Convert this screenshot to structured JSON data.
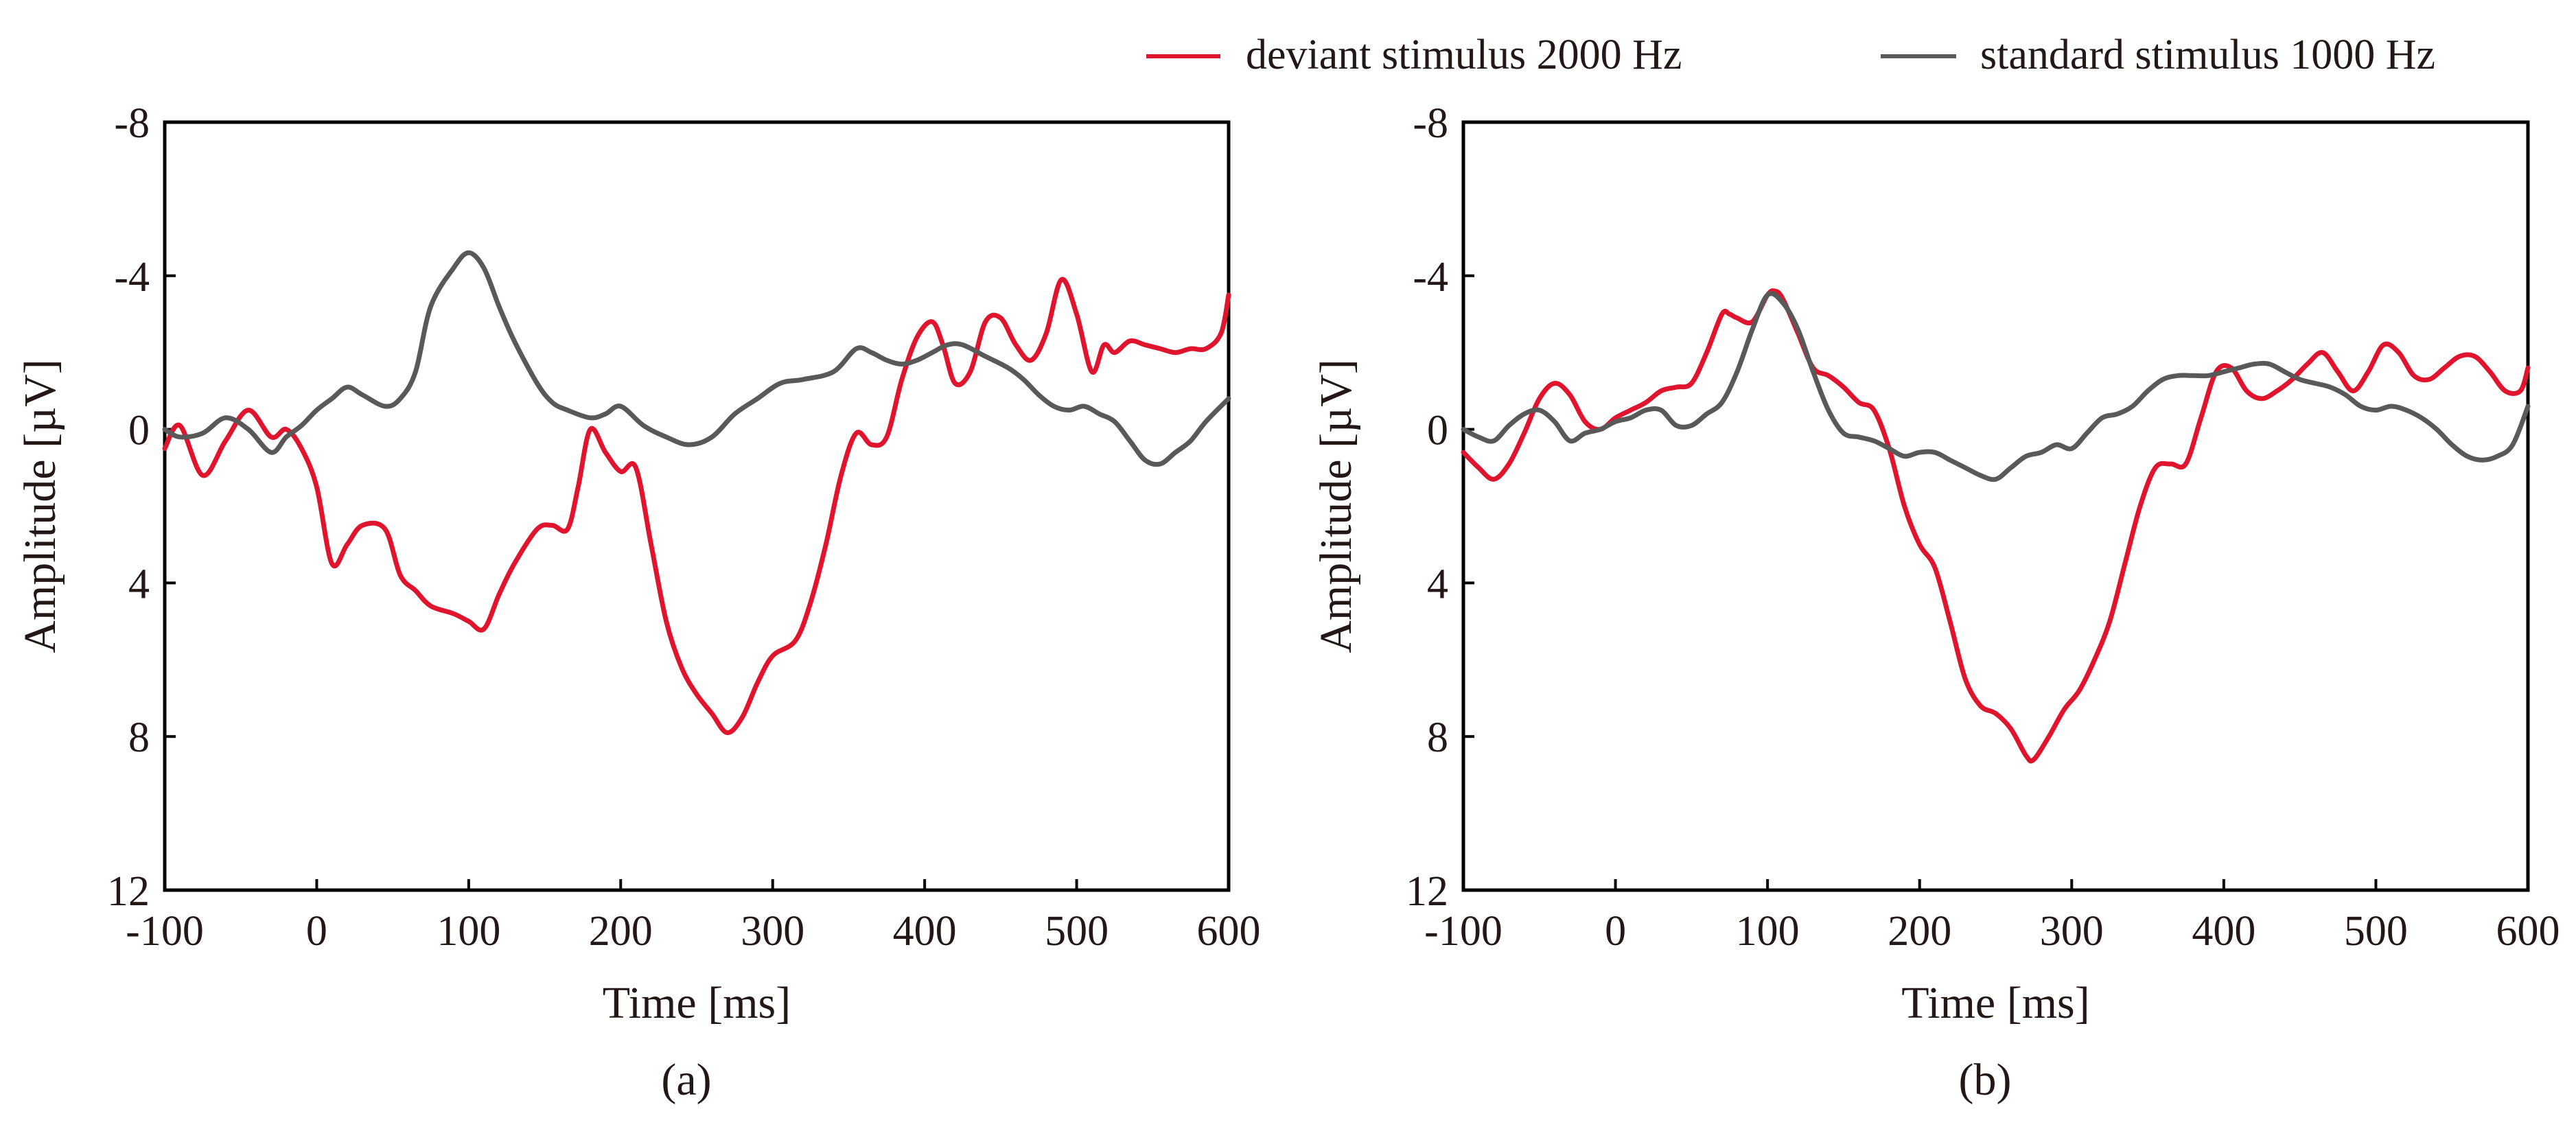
{
  "legend": {
    "items": [
      {
        "label": "deviant stimulus 2000 Hz",
        "color": "#e0142d"
      },
      {
        "label": "standard stimulus 1000 Hz",
        "color": "#595959"
      }
    ]
  },
  "chart_data": [
    {
      "type": "line",
      "caption": "(a)",
      "xlabel": "Time [ms]",
      "ylabel": "Amplitude [µV]",
      "xlim": [
        -100,
        600
      ],
      "ylim": [
        -8,
        12
      ],
      "y_inverted": true,
      "xticks": [
        -100,
        0,
        100,
        200,
        300,
        400,
        500,
        600
      ],
      "yticks": [
        -8,
        -4,
        0,
        4,
        8,
        12
      ],
      "ytick_labels": [
        "-8",
        "-4",
        "0",
        "4",
        "8",
        "12"
      ],
      "grid": false,
      "series": [
        {
          "name": "deviant stimulus 2000 Hz",
          "color": "#e0142d",
          "x": [
            -100,
            -90,
            -75,
            -60,
            -45,
            -30,
            -20,
            -10,
            0,
            10,
            20,
            30,
            45,
            55,
            65,
            75,
            90,
            100,
            110,
            120,
            130,
            145,
            155,
            165,
            172,
            180,
            190,
            200,
            210,
            220,
            230,
            240,
            250,
            260,
            270,
            280,
            290,
            300,
            315,
            325,
            335,
            345,
            355,
            365,
            375,
            385,
            395,
            405,
            412,
            420,
            430,
            440,
            450,
            460,
            470,
            480,
            490,
            500,
            510,
            518,
            525,
            535,
            545,
            555,
            565,
            575,
            585,
            595,
            600
          ],
          "y": [
            0.5,
            -0.1,
            1.2,
            0.3,
            -0.5,
            0.2,
            0,
            0.5,
            1.5,
            3.5,
            3.0,
            2.5,
            2.6,
            3.8,
            4.2,
            4.6,
            4.8,
            5.0,
            5.2,
            4.3,
            3.5,
            2.6,
            2.5,
            2.6,
            1.5,
            0,
            0.6,
            1.1,
            1.0,
            3,
            5,
            6.2,
            6.9,
            7.4,
            7.9,
            7.5,
            6.6,
            5.9,
            5.5,
            4.5,
            3.0,
            1.2,
            0.1,
            0.4,
            0.2,
            -1.3,
            -2.4,
            -2.8,
            -2.2,
            -1.2,
            -1.5,
            -2.8,
            -2.9,
            -2.2,
            -1.8,
            -2.5,
            -3.9,
            -3.0,
            -1.5,
            -2.2,
            -2.0,
            -2.3,
            -2.2,
            -2.1,
            -2.0,
            -2.1,
            -2.1,
            -2.5,
            -3.5
          ]
        },
        {
          "name": "standard stimulus 1000 Hz",
          "color": "#595959",
          "x": [
            -100,
            -90,
            -75,
            -60,
            -45,
            -30,
            -20,
            -10,
            0,
            10,
            20,
            30,
            45,
            55,
            65,
            75,
            90,
            100,
            110,
            120,
            130,
            145,
            155,
            165,
            180,
            190,
            200,
            215,
            230,
            245,
            260,
            275,
            290,
            305,
            320,
            340,
            355,
            365,
            375,
            385,
            395,
            405,
            415,
            425,
            440,
            455,
            465,
            475,
            485,
            495,
            505,
            515,
            525,
            535,
            545,
            555,
            565,
            575,
            585,
            600
          ],
          "y": [
            0,
            0.2,
            0.1,
            -0.3,
            0,
            0.6,
            0.2,
            -0.1,
            -0.5,
            -0.8,
            -1.1,
            -0.9,
            -0.6,
            -0.8,
            -1.5,
            -3.2,
            -4.2,
            -4.6,
            -4.2,
            -3.2,
            -2.3,
            -1.2,
            -0.7,
            -0.5,
            -0.3,
            -0.4,
            -0.6,
            -0.1,
            0.2,
            0.4,
            0.2,
            -0.4,
            -0.8,
            -1.2,
            -1.3,
            -1.5,
            -2.1,
            -2.0,
            -1.8,
            -1.7,
            -1.8,
            -2.0,
            -2.2,
            -2.2,
            -1.9,
            -1.6,
            -1.3,
            -0.9,
            -0.6,
            -0.5,
            -0.6,
            -0.4,
            -0.2,
            0.3,
            0.8,
            0.9,
            0.6,
            0.3,
            -0.2,
            -0.8
          ]
        }
      ]
    },
    {
      "type": "line",
      "caption": "(b)",
      "xlabel": "Time [ms]",
      "ylabel": "Amplitude [µV]",
      "xlim": [
        -100,
        600
      ],
      "ylim": [
        -8,
        12
      ],
      "y_inverted": true,
      "xticks": [
        -100,
        0,
        100,
        200,
        300,
        400,
        500,
        600
      ],
      "yticks": [
        -8,
        -4,
        0,
        4,
        8,
        12
      ],
      "ytick_labels": [
        "-8",
        "-4",
        "0",
        "4",
        "8",
        "12"
      ],
      "grid": false,
      "series": [
        {
          "name": "deviant stimulus 2000 Hz",
          "color": "#e0142d",
          "x": [
            -100,
            -90,
            -80,
            -70,
            -60,
            -50,
            -40,
            -30,
            -20,
            -10,
            0,
            10,
            20,
            30,
            40,
            50,
            60,
            70,
            75,
            80,
            90,
            100,
            105,
            110,
            120,
            130,
            140,
            150,
            160,
            170,
            180,
            190,
            200,
            210,
            220,
            230,
            240,
            250,
            260,
            270,
            275,
            285,
            295,
            305,
            315,
            325,
            335,
            345,
            355,
            365,
            375,
            385,
            395,
            405,
            415,
            425,
            435,
            445,
            455,
            465,
            475,
            485,
            495,
            505,
            515,
            525,
            535,
            545,
            555,
            565,
            575,
            585,
            595,
            600
          ],
          "y": [
            0.6,
            1.0,
            1.3,
            0.9,
            0.1,
            -0.8,
            -1.2,
            -0.9,
            -0.2,
            0,
            -0.3,
            -0.5,
            -0.7,
            -1.0,
            -1.1,
            -1.2,
            -2.0,
            -3.0,
            -3.0,
            -2.9,
            -2.8,
            -3.5,
            -3.6,
            -3.4,
            -2.5,
            -1.6,
            -1.4,
            -1.1,
            -0.7,
            -0.5,
            0.5,
            2.0,
            3.0,
            3.6,
            5.0,
            6.5,
            7.2,
            7.4,
            7.8,
            8.5,
            8.6,
            8.0,
            7.3,
            6.8,
            6.0,
            5.0,
            3.5,
            2.0,
            1.0,
            0.9,
            0.9,
            -0.3,
            -1.5,
            -1.6,
            -1.0,
            -0.8,
            -1.0,
            -1.3,
            -1.7,
            -2.0,
            -1.5,
            -1.0,
            -1.5,
            -2.2,
            -2.0,
            -1.4,
            -1.3,
            -1.6,
            -1.9,
            -1.9,
            -1.5,
            -1.0,
            -1.0,
            -1.6
          ]
        },
        {
          "name": "standard stimulus 1000 Hz",
          "color": "#595959",
          "x": [
            -100,
            -90,
            -80,
            -70,
            -60,
            -50,
            -40,
            -30,
            -20,
            -10,
            0,
            10,
            20,
            30,
            40,
            50,
            60,
            70,
            80,
            90,
            100,
            110,
            120,
            130,
            140,
            150,
            160,
            170,
            180,
            190,
            200,
            210,
            220,
            230,
            240,
            250,
            260,
            270,
            280,
            290,
            300,
            310,
            320,
            330,
            340,
            350,
            360,
            370,
            380,
            390,
            400,
            410,
            420,
            430,
            440,
            450,
            460,
            470,
            480,
            490,
            500,
            510,
            520,
            530,
            540,
            550,
            560,
            570,
            580,
            590,
            600
          ],
          "y": [
            0,
            0.2,
            0.3,
            -0.1,
            -0.4,
            -0.5,
            -0.2,
            0.3,
            0.1,
            0,
            -0.2,
            -0.3,
            -0.5,
            -0.5,
            -0.1,
            -0.1,
            -0.4,
            -0.7,
            -1.5,
            -2.6,
            -3.5,
            -3.3,
            -2.6,
            -1.5,
            -0.5,
            0.1,
            0.2,
            0.3,
            0.5,
            0.7,
            0.6,
            0.6,
            0.8,
            1.0,
            1.2,
            1.3,
            1.0,
            0.7,
            0.6,
            0.4,
            0.5,
            0.1,
            -0.3,
            -0.4,
            -0.6,
            -1.0,
            -1.3,
            -1.4,
            -1.4,
            -1.4,
            -1.5,
            -1.6,
            -1.7,
            -1.7,
            -1.5,
            -1.3,
            -1.2,
            -1.1,
            -0.9,
            -0.6,
            -0.5,
            -0.6,
            -0.5,
            -0.3,
            0.0,
            0.4,
            0.7,
            0.8,
            0.7,
            0.4,
            -0.6
          ]
        }
      ]
    }
  ]
}
